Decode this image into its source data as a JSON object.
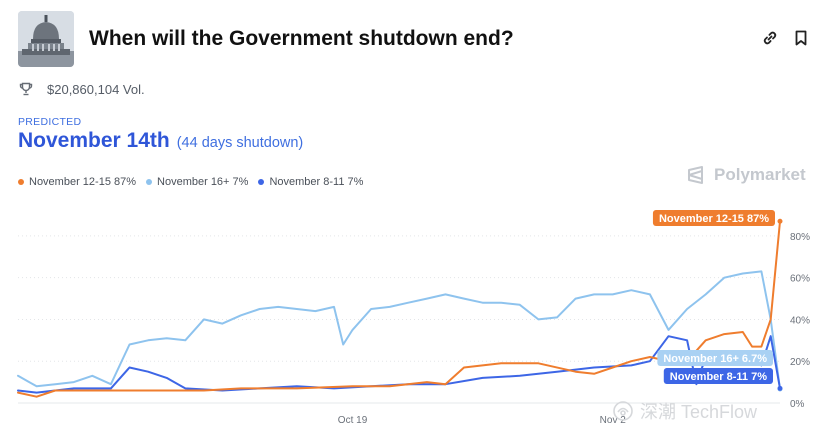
{
  "header": {
    "title": "When will the Government shutdown end?",
    "thumbnail_icon": "capitol-building-image",
    "link_icon": "link-icon",
    "bookmark_icon": "bookmark-icon"
  },
  "volume": {
    "icon": "trophy-icon",
    "text": "$20,860,104 Vol."
  },
  "prediction": {
    "label": "PREDICTED",
    "main": "November 14th",
    "sub": "(44 days shutdown)"
  },
  "brand": {
    "name": "Polymarket"
  },
  "watermark": {
    "text": "深潮 TechFlow"
  },
  "colors": {
    "orange": "#ef7d2e",
    "light_blue": "#8ec3ee",
    "blue": "#3d66e6",
    "accent": "#2f56d8"
  },
  "chart_data": {
    "type": "line",
    "x_type": "date",
    "xlim": [
      "2025-10-01",
      "2025-11-11"
    ],
    "ylim": [
      0,
      90
    ],
    "yticks": [
      0,
      20,
      40,
      60,
      80
    ],
    "ytick_labels": [
      "0%",
      "20%",
      "40%",
      "60%",
      "80%"
    ],
    "xticks": [
      "2025-10-19",
      "2025-11-02"
    ],
    "xtick_labels": [
      "Oct 19",
      "Nov 2"
    ],
    "grid": true,
    "legend_position": "top-left",
    "series": [
      {
        "name": "November 12-15",
        "legend_label": "November 12-15 87%",
        "end_label": "November 12-15 87%",
        "color": "#ef7d2e",
        "points": [
          [
            "2025-10-01",
            5
          ],
          [
            "2025-10-02",
            3
          ],
          [
            "2025-10-03",
            6
          ],
          [
            "2025-10-05",
            6
          ],
          [
            "2025-10-08",
            6
          ],
          [
            "2025-10-11",
            6
          ],
          [
            "2025-10-13",
            7
          ],
          [
            "2025-10-16",
            7
          ],
          [
            "2025-10-19",
            8
          ],
          [
            "2025-10-21",
            8
          ],
          [
            "2025-10-23",
            10
          ],
          [
            "2025-10-24",
            9
          ],
          [
            "2025-10-25",
            17
          ],
          [
            "2025-10-27",
            19
          ],
          [
            "2025-10-29",
            19
          ],
          [
            "2025-10-31",
            15
          ],
          [
            "2025-11-01",
            14
          ],
          [
            "2025-11-02",
            17
          ],
          [
            "2025-11-03",
            20
          ],
          [
            "2025-11-04",
            22
          ],
          [
            "2025-11-05",
            20
          ],
          [
            "2025-11-06",
            20
          ],
          [
            "2025-11-07",
            30
          ],
          [
            "2025-11-08",
            33
          ],
          [
            "2025-11-09",
            34
          ],
          [
            "2025-11-09T12",
            27
          ],
          [
            "2025-11-10",
            27
          ],
          [
            "2025-11-10T12",
            40
          ],
          [
            "2025-11-11",
            87
          ]
        ]
      },
      {
        "name": "November 16+",
        "legend_label": "November 16+ 7%",
        "end_label": "November 16+ 6.7%",
        "color": "#8ec3ee",
        "points": [
          [
            "2025-10-01",
            13
          ],
          [
            "2025-10-02",
            8
          ],
          [
            "2025-10-03",
            9
          ],
          [
            "2025-10-04",
            10
          ],
          [
            "2025-10-05",
            13
          ],
          [
            "2025-10-06",
            9
          ],
          [
            "2025-10-07",
            28
          ],
          [
            "2025-10-08",
            30
          ],
          [
            "2025-10-09",
            31
          ],
          [
            "2025-10-10",
            30
          ],
          [
            "2025-10-11",
            40
          ],
          [
            "2025-10-12",
            38
          ],
          [
            "2025-10-13",
            42
          ],
          [
            "2025-10-14",
            45
          ],
          [
            "2025-10-15",
            46
          ],
          [
            "2025-10-16",
            45
          ],
          [
            "2025-10-17",
            44
          ],
          [
            "2025-10-18",
            46
          ],
          [
            "2025-10-18T12",
            28
          ],
          [
            "2025-10-19",
            35
          ],
          [
            "2025-10-20",
            45
          ],
          [
            "2025-10-21",
            46
          ],
          [
            "2025-10-22",
            48
          ],
          [
            "2025-10-23",
            50
          ],
          [
            "2025-10-24",
            52
          ],
          [
            "2025-10-25",
            50
          ],
          [
            "2025-10-26",
            48
          ],
          [
            "2025-10-27",
            48
          ],
          [
            "2025-10-28",
            47
          ],
          [
            "2025-10-29",
            40
          ],
          [
            "2025-10-30",
            41
          ],
          [
            "2025-10-31",
            50
          ],
          [
            "2025-11-01",
            52
          ],
          [
            "2025-11-02",
            52
          ],
          [
            "2025-11-03",
            54
          ],
          [
            "2025-11-04",
            52
          ],
          [
            "2025-11-05",
            35
          ],
          [
            "2025-11-06",
            45
          ],
          [
            "2025-11-07",
            52
          ],
          [
            "2025-11-08",
            60
          ],
          [
            "2025-11-09",
            62
          ],
          [
            "2025-11-10",
            63
          ],
          [
            "2025-11-10T12",
            40
          ],
          [
            "2025-11-11",
            6.7
          ]
        ]
      },
      {
        "name": "November 8-11",
        "legend_label": "November 8-11 7%",
        "end_label": "November 8-11 7%",
        "color": "#3d66e6",
        "points": [
          [
            "2025-10-01",
            6
          ],
          [
            "2025-10-02",
            5
          ],
          [
            "2025-10-03",
            6
          ],
          [
            "2025-10-04",
            7
          ],
          [
            "2025-10-06",
            7
          ],
          [
            "2025-10-07",
            17
          ],
          [
            "2025-10-08",
            15
          ],
          [
            "2025-10-09",
            12
          ],
          [
            "2025-10-10",
            7
          ],
          [
            "2025-10-12",
            6
          ],
          [
            "2025-10-14",
            7
          ],
          [
            "2025-10-16",
            8
          ],
          [
            "2025-10-18",
            7
          ],
          [
            "2025-10-20",
            8
          ],
          [
            "2025-10-22",
            9
          ],
          [
            "2025-10-24",
            9
          ],
          [
            "2025-10-26",
            12
          ],
          [
            "2025-10-28",
            13
          ],
          [
            "2025-10-30",
            15
          ],
          [
            "2025-11-01",
            17
          ],
          [
            "2025-11-03",
            18
          ],
          [
            "2025-11-04",
            20
          ],
          [
            "2025-11-05",
            32
          ],
          [
            "2025-11-06",
            30
          ],
          [
            "2025-11-06T12",
            9
          ],
          [
            "2025-11-07",
            22
          ],
          [
            "2025-11-08",
            24
          ],
          [
            "2025-11-09",
            22
          ],
          [
            "2025-11-10",
            18
          ],
          [
            "2025-11-10T12",
            32
          ],
          [
            "2025-11-11",
            7
          ]
        ]
      }
    ]
  }
}
